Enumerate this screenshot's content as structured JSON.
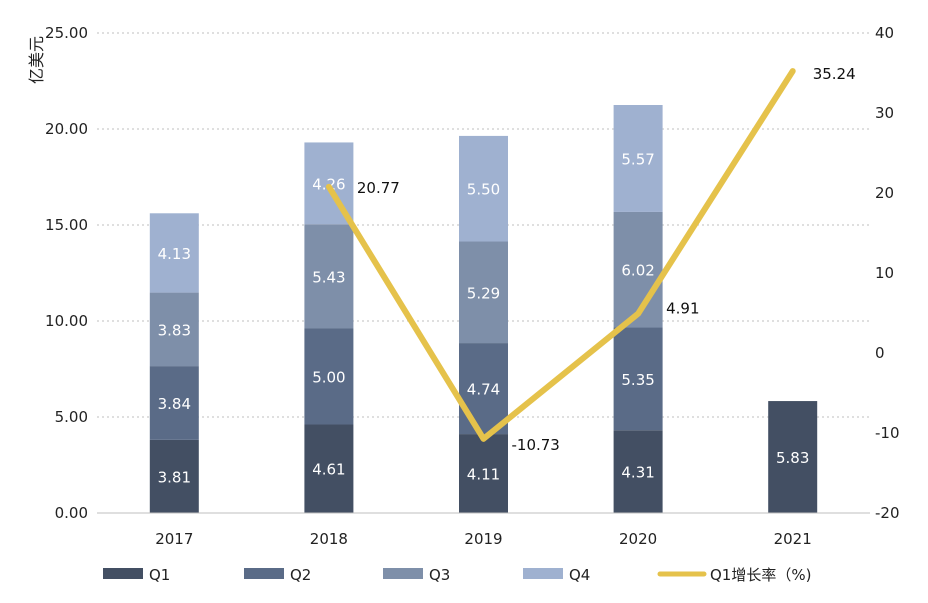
{
  "chart_data": {
    "type": "bar",
    "stacked": true,
    "categories": [
      "2017",
      "2018",
      "2019",
      "2020",
      "2021"
    ],
    "ylabel_left": "亿美元",
    "ylim_left": [
      0,
      25
    ],
    "yticks_left": [
      "0.00",
      "5.00",
      "10.00",
      "15.00",
      "20.00",
      "25.00"
    ],
    "ylim_right": [
      -20,
      40
    ],
    "yticks_right": [
      "-20",
      "-10",
      "0",
      "10",
      "20",
      "30",
      "40"
    ],
    "grid": true,
    "legend_position": "bottom",
    "series": [
      {
        "name": "Q1",
        "color": "#434f63",
        "values": [
          3.81,
          4.61,
          4.11,
          4.31,
          5.83
        ],
        "labels": [
          "3.81",
          "4.61",
          "4.11",
          "4.31",
          "5.83"
        ]
      },
      {
        "name": "Q2",
        "color": "#5a6b87",
        "values": [
          3.84,
          5.0,
          4.74,
          5.35,
          null
        ],
        "labels": [
          "3.84",
          "5.00",
          "4.74",
          "5.35",
          ""
        ]
      },
      {
        "name": "Q3",
        "color": "#7e8fa9",
        "values": [
          3.83,
          5.43,
          5.29,
          6.02,
          null
        ],
        "labels": [
          "3.83",
          "5.43",
          "5.29",
          "6.02",
          ""
        ]
      },
      {
        "name": "Q4",
        "color": "#9fb1d0",
        "values": [
          4.13,
          4.26,
          5.5,
          5.57,
          null
        ],
        "labels": [
          "4.13",
          "4.26",
          "5.50",
          "5.57",
          ""
        ]
      }
    ],
    "line_series": {
      "name": "Q1增长率（%)",
      "color": "#e5c24b",
      "axis": "right",
      "x": [
        "2018",
        "2019",
        "2020",
        "2021"
      ],
      "values": [
        20.77,
        -10.73,
        4.91,
        35.24
      ],
      "labels": [
        "20.77",
        "-10.73",
        "4.91",
        "35.24"
      ]
    }
  }
}
